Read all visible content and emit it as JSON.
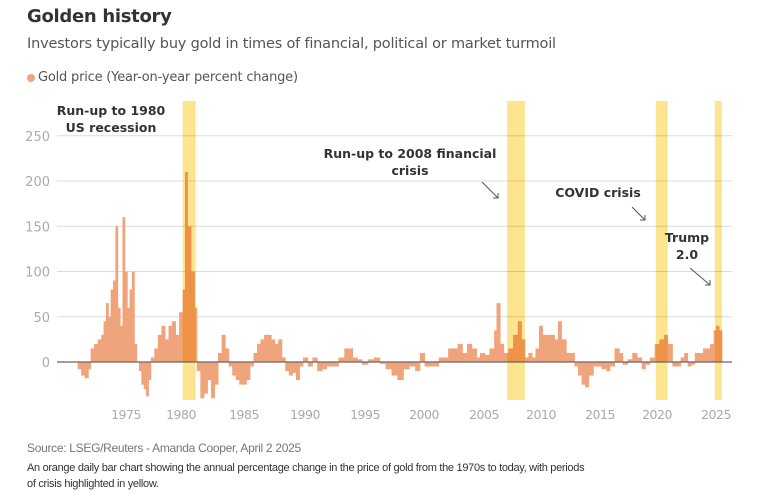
{
  "header": {
    "title": "Golden history",
    "subtitle": "Investors typically buy gold in times of financial, political or market turmoil"
  },
  "footer": {
    "source": "Source: LSEG/Reuters - Amanda Cooper, April 2 2025",
    "description": "An orange daily bar chart showing the annual percentage change in the price of gold from the 1970s to today, with periods of crisis highlighted in yellow."
  },
  "chart_data": {
    "type": "bar",
    "title": "Golden history",
    "legend": [
      {
        "name": "Gold price (Year-on-year percent change)",
        "color": "#f0a47c"
      }
    ],
    "legend_placement": "top-left",
    "grid": true,
    "ylim": [
      -40,
      270
    ],
    "xlim": [
      1970,
      2026
    ],
    "y_ticks": [
      0,
      50,
      100,
      150,
      200,
      250
    ],
    "x_ticks": [
      1975,
      1980,
      1985,
      1990,
      1995,
      2000,
      2005,
      2010,
      2015,
      2020,
      2025
    ],
    "colors": {
      "series": "#f0a47c",
      "highlight": "#fde58f",
      "annotation": "#333333"
    },
    "highlights": [
      {
        "start": 1979.8,
        "end": 1980.9,
        "label": "Run-up to 1980\nUS recession",
        "label_lines": [
          "Run-up to 1980",
          "US recession"
        ]
      },
      {
        "start": 2007.3,
        "end": 2008.8,
        "label_lines": [
          "Run-up to 2008 financial",
          "crisis"
        ]
      },
      {
        "start": 2019.9,
        "end": 2020.9,
        "label_lines": [
          "COVID crisis"
        ]
      },
      {
        "start": 2024.9,
        "end": 2025.5,
        "label_lines": [
          "Trump",
          "2.0"
        ]
      }
    ],
    "series": [
      {
        "name": "Gold price (Year-on-year percent change)",
        "points": [
          [
            1970.9,
            -8
          ],
          [
            1971.2,
            -15
          ],
          [
            1971.5,
            -18
          ],
          [
            1971.8,
            -8
          ],
          [
            1972.0,
            15
          ],
          [
            1972.3,
            20
          ],
          [
            1972.6,
            25
          ],
          [
            1972.9,
            30
          ],
          [
            1973.1,
            45
          ],
          [
            1973.3,
            65
          ],
          [
            1973.5,
            50
          ],
          [
            1973.7,
            80
          ],
          [
            1973.9,
            90
          ],
          [
            1974.1,
            150
          ],
          [
            1974.3,
            60
          ],
          [
            1974.5,
            40
          ],
          [
            1974.7,
            160
          ],
          [
            1974.9,
            100
          ],
          [
            1975.1,
            60
          ],
          [
            1975.3,
            80
          ],
          [
            1975.5,
            100
          ],
          [
            1975.7,
            20
          ],
          [
            1975.9,
            0
          ],
          [
            1976.1,
            -10
          ],
          [
            1976.3,
            -25
          ],
          [
            1976.5,
            -30
          ],
          [
            1976.7,
            -38
          ],
          [
            1976.9,
            -20
          ],
          [
            1977.1,
            5
          ],
          [
            1977.4,
            15
          ],
          [
            1977.7,
            30
          ],
          [
            1978.0,
            40
          ],
          [
            1978.3,
            25
          ],
          [
            1978.6,
            40
          ],
          [
            1978.9,
            45
          ],
          [
            1979.2,
            30
          ],
          [
            1979.5,
            55
          ],
          [
            1979.8,
            80
          ],
          [
            1980.0,
            210
          ],
          [
            1980.2,
            150
          ],
          [
            1980.5,
            100
          ],
          [
            1980.8,
            60
          ],
          [
            1981.0,
            -10
          ],
          [
            1981.3,
            -40
          ],
          [
            1981.6,
            -35
          ],
          [
            1981.9,
            -20
          ],
          [
            1982.2,
            -40
          ],
          [
            1982.5,
            -25
          ],
          [
            1982.8,
            10
          ],
          [
            1983.1,
            30
          ],
          [
            1983.4,
            15
          ],
          [
            1983.7,
            -5
          ],
          [
            1984.0,
            -15
          ],
          [
            1984.3,
            -20
          ],
          [
            1984.6,
            -25
          ],
          [
            1984.9,
            -25
          ],
          [
            1985.2,
            -20
          ],
          [
            1985.5,
            -5
          ],
          [
            1985.8,
            10
          ],
          [
            1986.1,
            20
          ],
          [
            1986.4,
            25
          ],
          [
            1986.7,
            30
          ],
          [
            1987.0,
            30
          ],
          [
            1987.3,
            25
          ],
          [
            1987.6,
            20
          ],
          [
            1987.9,
            25
          ],
          [
            1988.2,
            5
          ],
          [
            1988.5,
            -10
          ],
          [
            1988.8,
            -15
          ],
          [
            1989.1,
            -12
          ],
          [
            1989.4,
            -20
          ],
          [
            1989.7,
            -5
          ],
          [
            1990.0,
            5
          ],
          [
            1990.4,
            -5
          ],
          [
            1990.8,
            5
          ],
          [
            1991.2,
            -10
          ],
          [
            1991.6,
            -8
          ],
          [
            1992.0,
            -5
          ],
          [
            1992.5,
            -5
          ],
          [
            1993.0,
            5
          ],
          [
            1993.5,
            15
          ],
          [
            1993.8,
            15
          ],
          [
            1994.2,
            5
          ],
          [
            1994.6,
            3
          ],
          [
            1995.0,
            -3
          ],
          [
            1995.5,
            3
          ],
          [
            1996.0,
            5
          ],
          [
            1996.5,
            -2
          ],
          [
            1997.0,
            -8
          ],
          [
            1997.5,
            -15
          ],
          [
            1998.0,
            -20
          ],
          [
            1998.5,
            -8
          ],
          [
            1999.0,
            -5
          ],
          [
            1999.5,
            -10
          ],
          [
            1999.9,
            10
          ],
          [
            2000.3,
            -5
          ],
          [
            2000.7,
            -5
          ],
          [
            2001.0,
            -5
          ],
          [
            2001.5,
            5
          ],
          [
            2001.9,
            5
          ],
          [
            2002.3,
            15
          ],
          [
            2002.7,
            15
          ],
          [
            2003.1,
            20
          ],
          [
            2003.5,
            10
          ],
          [
            2003.9,
            20
          ],
          [
            2004.3,
            15
          ],
          [
            2004.7,
            5
          ],
          [
            2005.0,
            10
          ],
          [
            2005.4,
            8
          ],
          [
            2005.8,
            15
          ],
          [
            2006.2,
            35
          ],
          [
            2006.4,
            65
          ],
          [
            2006.7,
            20
          ],
          [
            2007.0,
            10
          ],
          [
            2007.4,
            15
          ],
          [
            2007.8,
            30
          ],
          [
            2008.2,
            45
          ],
          [
            2008.5,
            25
          ],
          [
            2008.8,
            5
          ],
          [
            2009.1,
            10
          ],
          [
            2009.4,
            5
          ],
          [
            2009.7,
            15
          ],
          [
            2010.0,
            40
          ],
          [
            2010.3,
            30
          ],
          [
            2010.6,
            30
          ],
          [
            2010.9,
            30
          ],
          [
            2011.3,
            25
          ],
          [
            2011.6,
            45
          ],
          [
            2011.9,
            25
          ],
          [
            2012.3,
            10
          ],
          [
            2012.7,
            10
          ],
          [
            2013.0,
            -5
          ],
          [
            2013.3,
            -15
          ],
          [
            2013.6,
            -25
          ],
          [
            2013.9,
            -28
          ],
          [
            2014.2,
            -15
          ],
          [
            2014.6,
            -5
          ],
          [
            2014.9,
            -5
          ],
          [
            2015.3,
            -8
          ],
          [
            2015.7,
            -10
          ],
          [
            2016.0,
            -5
          ],
          [
            2016.4,
            15
          ],
          [
            2016.8,
            10
          ],
          [
            2017.1,
            -3
          ],
          [
            2017.5,
            3
          ],
          [
            2017.9,
            10
          ],
          [
            2018.3,
            5
          ],
          [
            2018.7,
            -8
          ],
          [
            2019.0,
            -3
          ],
          [
            2019.4,
            5
          ],
          [
            2019.8,
            20
          ],
          [
            2020.2,
            25
          ],
          [
            2020.6,
            30
          ],
          [
            2020.9,
            20
          ],
          [
            2021.3,
            -5
          ],
          [
            2021.7,
            -5
          ],
          [
            2022.0,
            5
          ],
          [
            2022.3,
            10
          ],
          [
            2022.6,
            -5
          ],
          [
            2022.9,
            -3
          ],
          [
            2023.2,
            10
          ],
          [
            2023.6,
            10
          ],
          [
            2023.9,
            15
          ],
          [
            2024.2,
            15
          ],
          [
            2024.5,
            20
          ],
          [
            2024.8,
            35
          ],
          [
            2025.0,
            40
          ],
          [
            2025.25,
            35
          ]
        ]
      }
    ]
  }
}
